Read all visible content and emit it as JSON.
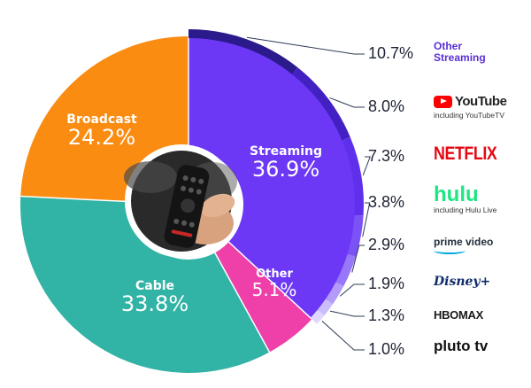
{
  "chart_data": {
    "type": "pie",
    "style": "donut",
    "slices": [
      {
        "name": "Streaming",
        "value": 36.9,
        "color": "#6c37f5",
        "label": "36.9%"
      },
      {
        "name": "Other",
        "value": 5.1,
        "color": "#ef3fa8",
        "label": "5.1%"
      },
      {
        "name": "Cable",
        "value": 33.8,
        "color": "#31b3a5",
        "label": "33.8%"
      },
      {
        "name": "Broadcast",
        "value": 24.2,
        "color": "#fa8c12",
        "label": "24.2%"
      }
    ],
    "streaming_breakdown": [
      {
        "name": "Other Streaming",
        "value": 10.7,
        "label": "10.7%",
        "color": "#2b1a8c"
      },
      {
        "name": "YouTube",
        "value": 8.0,
        "label": "8.0%",
        "sub": "including YouTubeTV",
        "color": "#4220c2"
      },
      {
        "name": "NETFLIX",
        "value": 7.3,
        "label": "7.3%",
        "color": "#5f30ec"
      },
      {
        "name": "hulu",
        "value": 3.8,
        "label": "3.8%",
        "sub": "including Hulu Live",
        "color": "#7a52f5"
      },
      {
        "name": "prime video",
        "value": 2.9,
        "label": "2.9%",
        "color": "#9878f8"
      },
      {
        "name": "Disney+",
        "value": 1.9,
        "label": "1.9%",
        "color": "#b39bfa"
      },
      {
        "name": "HBOMAX",
        "value": 1.3,
        "label": "1.3%",
        "color": "#cbbcfc"
      },
      {
        "name": "pluto tv",
        "value": 1.0,
        "label": "1.0%",
        "color": "#e0d7fe"
      }
    ]
  },
  "colors": {
    "leader": "#2c3a55",
    "center_photo": "remote-control-photo"
  }
}
